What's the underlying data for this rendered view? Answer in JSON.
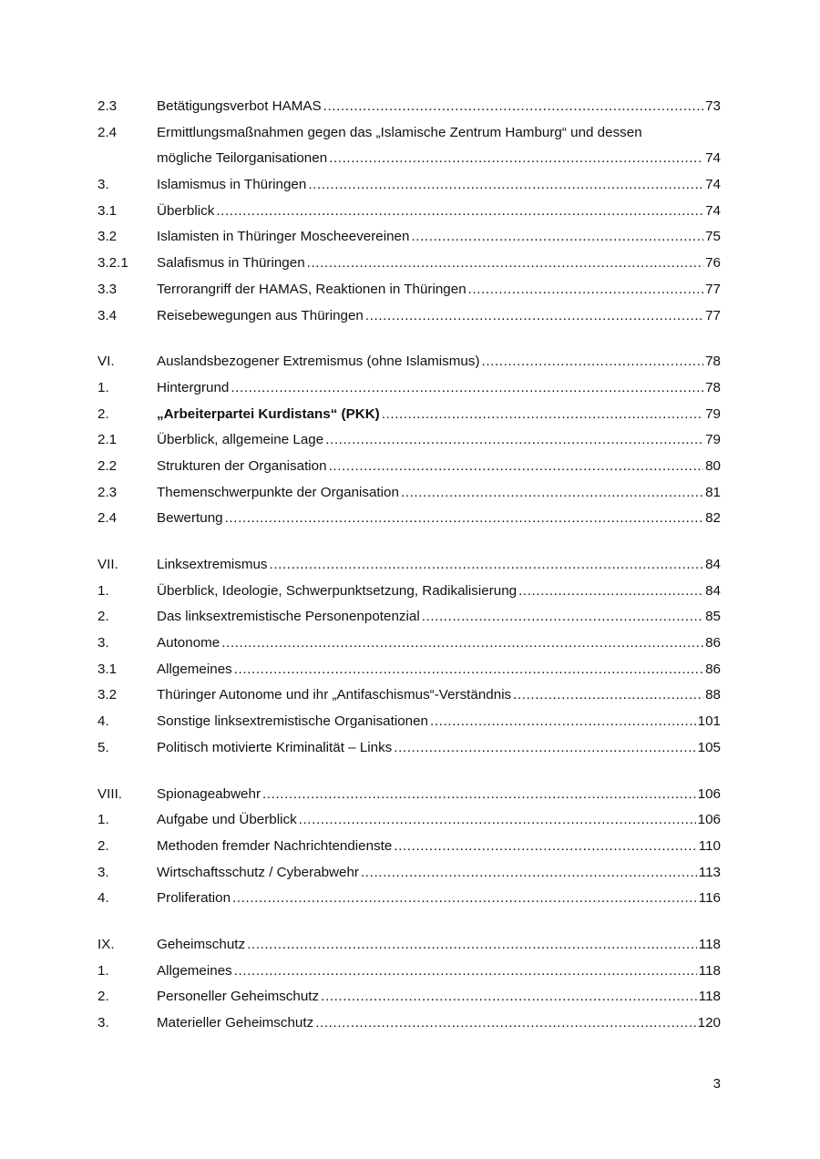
{
  "toc_groups": [
    [
      {
        "num": "2.3",
        "title": "Betätigungsverbot HAMAS",
        "page": "73"
      },
      {
        "num": "2.4",
        "title": "Ermittlungsmaßnahmen gegen das „Islamische Zentrum Hamburg“ und dessen",
        "title_line2": "mögliche Teilorganisationen",
        "page": "74"
      },
      {
        "num": "3.",
        "title": "Islamismus in Thüringen",
        "page": "74"
      },
      {
        "num": "3.1",
        "title": "Überblick",
        "page": "74"
      },
      {
        "num": "3.2",
        "title": "Islamisten in Thüringer Moscheevereinen",
        "page": "75"
      },
      {
        "num": "3.2.1",
        "title": "Salafismus in Thüringen",
        "page": "76"
      },
      {
        "num": "3.3",
        "title": "Terrorangriff der HAMAS, Reaktionen in Thüringen",
        "page": "77"
      },
      {
        "num": "3.4",
        "title": "Reisebewegungen aus Thüringen",
        "page": "77"
      }
    ],
    [
      {
        "num": "VI.",
        "title": "Auslandsbezogener Extremismus (ohne Islamismus)",
        "page": "78"
      },
      {
        "num": "1.",
        "title": "Hintergrund",
        "page": "78"
      },
      {
        "num": "2.",
        "title": "„Arbeiterpartei Kurdistans“ (PKK)",
        "page": "79",
        "bold": true
      },
      {
        "num": "2.1",
        "title": "Überblick, allgemeine Lage",
        "page": "79"
      },
      {
        "num": "2.2",
        "title": "Strukturen der Organisation",
        "page": "80"
      },
      {
        "num": "2.3",
        "title": "Themenschwerpunkte der Organisation",
        "page": "81"
      },
      {
        "num": "2.4",
        "title": "Bewertung",
        "page": "82"
      }
    ],
    [
      {
        "num": "VII.",
        "title": "Linksextremismus",
        "page": "84"
      },
      {
        "num": "1.",
        "title": "Überblick, Ideologie, Schwerpunktsetzung, Radikalisierung",
        "page": "84"
      },
      {
        "num": "2.",
        "title": "Das linksextremistische Personenpotenzial",
        "page": "85"
      },
      {
        "num": "3.",
        "title": "Autonome",
        "page": "86"
      },
      {
        "num": "3.1",
        "title": "Allgemeines",
        "page": "86"
      },
      {
        "num": "3.2",
        "title": "Thüringer Autonome und ihr „Antifaschismus“-Verständnis",
        "page": "88"
      },
      {
        "num": "4.",
        "title": "Sonstige linksextremistische Organisationen",
        "page": "101"
      },
      {
        "num": "5.",
        "title": "Politisch motivierte Kriminalität – Links",
        "page": "105"
      }
    ],
    [
      {
        "num": "VIII.",
        "title": "Spionageabwehr",
        "page": "106"
      },
      {
        "num": "1.",
        "title": "Aufgabe und Überblick",
        "page": "106"
      },
      {
        "num": "2.",
        "title": "Methoden fremder Nachrichtendienste",
        "page": "110"
      },
      {
        "num": "3.",
        "title": "Wirtschaftsschutz / Cyberabwehr",
        "page": "113"
      },
      {
        "num": "4.",
        "title": "Proliferation",
        "page": "116"
      }
    ],
    [
      {
        "num": "IX.",
        "title": "Geheimschutz",
        "page": "118"
      },
      {
        "num": "1.",
        "title": "Allgemeines",
        "page": "118"
      },
      {
        "num": "2.",
        "title": "Personeller Geheimschutz",
        "page": "118"
      },
      {
        "num": "3.",
        "title": "Materieller Geheimschutz",
        "page": "120"
      }
    ]
  ],
  "page_number": "3"
}
